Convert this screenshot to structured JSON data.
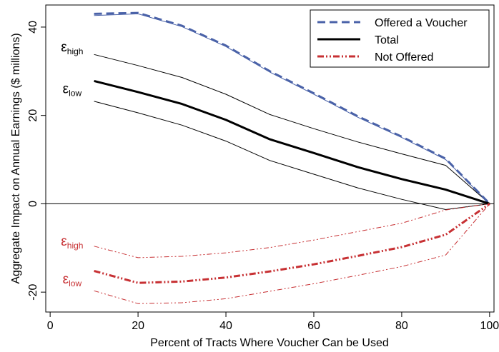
{
  "chart_data": {
    "type": "line",
    "title": "",
    "xlabel": "Percent of Tracts Where Voucher Can be Used",
    "ylabel": "Aggregate Impact on Annual Earnings ($ millions)",
    "xlim": [
      -1,
      101
    ],
    "ylim": [
      -24.5,
      45
    ],
    "xticks": [
      0,
      20,
      40,
      60,
      80,
      100
    ],
    "yticks": [
      -20,
      0,
      20,
      40
    ],
    "x": [
      10,
      20,
      30,
      40,
      50,
      60,
      70,
      80,
      90,
      100
    ],
    "grid": false,
    "legend_position": "top-right",
    "zero_line": true,
    "series": [
      {
        "name": "Offered a Voucher",
        "key": "offered",
        "role": "main",
        "color": "#4a62a8",
        "style": "dashed",
        "values": [
          43,
          43.2,
          40.3,
          35.8,
          30,
          25,
          19.8,
          15.2,
          10.2,
          0
        ]
      },
      {
        "name": "Total",
        "key": "total",
        "role": "main",
        "color": "#000000",
        "style": "solid",
        "values": [
          27.8,
          25.3,
          22.6,
          19,
          14.6,
          11.5,
          8.3,
          5.6,
          3.2,
          0
        ]
      },
      {
        "name": "Not Offered",
        "key": "notoffered",
        "role": "main",
        "color": "#c73033",
        "style": "dashdot",
        "values": [
          -15.2,
          -17.9,
          -17.6,
          -16.7,
          -15.3,
          -13.7,
          -11.8,
          -9.8,
          -7,
          0
        ]
      },
      {
        "name": "",
        "key": "offered_b",
        "role": "band",
        "color": "#4a62a8",
        "style": "solid",
        "values": [
          42.6,
          43,
          40.1,
          35.6,
          29.8,
          24.8,
          19.6,
          15,
          10,
          0
        ]
      },
      {
        "name": "",
        "key": "total_high",
        "role": "band",
        "color": "#000000",
        "style": "solid",
        "values": [
          33.8,
          31.3,
          28.6,
          24.8,
          20.2,
          17,
          14,
          11.3,
          8.7,
          0
        ]
      },
      {
        "name": "",
        "key": "total_low",
        "role": "band",
        "color": "#000000",
        "style": "solid",
        "values": [
          23.2,
          20.6,
          17.8,
          14.2,
          9.8,
          6.7,
          3.6,
          1,
          -1.3,
          0
        ]
      },
      {
        "name": "",
        "key": "notoffered_high",
        "role": "band",
        "color": "#c73033",
        "style": "dashdot",
        "values": [
          -9.6,
          -12.2,
          -11.9,
          -11.1,
          -9.9,
          -8.2,
          -6.3,
          -4.4,
          -1.4,
          0
        ]
      },
      {
        "name": "",
        "key": "notoffered_low",
        "role": "band",
        "color": "#c73033",
        "style": "dashdot",
        "values": [
          -19.7,
          -22.6,
          -22.4,
          -21.5,
          -19.8,
          -18.1,
          -16.2,
          -14.2,
          -11.6,
          0
        ]
      }
    ],
    "annotations": [
      {
        "main": "ε",
        "sub": "high",
        "x": 5,
        "y": 34.5,
        "color": "#000000"
      },
      {
        "main": "ε",
        "sub": "low",
        "x": 5,
        "y": 25,
        "color": "#000000"
      },
      {
        "main": "ε",
        "sub": "high",
        "x": 5,
        "y": -9.5,
        "color": "#c73033"
      },
      {
        "main": "ε",
        "sub": "low",
        "x": 5,
        "y": -18,
        "color": "#c73033"
      }
    ]
  }
}
